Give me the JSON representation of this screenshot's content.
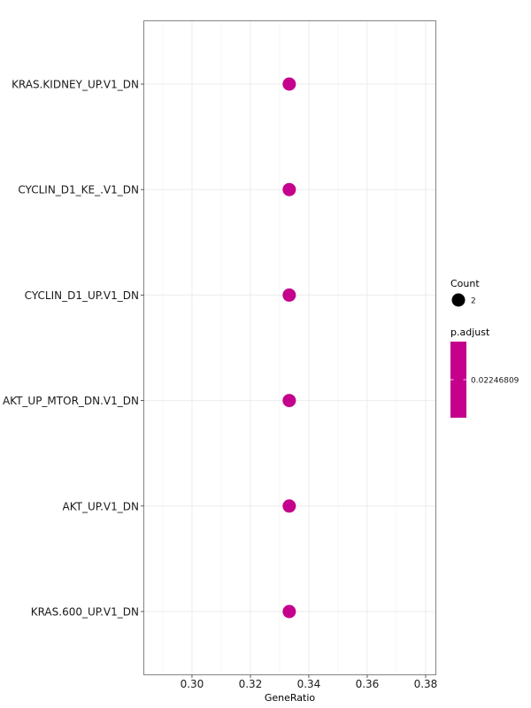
{
  "chart_data": {
    "type": "scatter",
    "title": "",
    "xlabel": "GeneRatio",
    "ylabel": "",
    "xlim": [
      0.2835,
      0.3835
    ],
    "x_ticks": [
      0.3,
      0.32,
      0.34,
      0.36,
      0.38
    ],
    "x_tick_labels": [
      "0.30",
      "0.32",
      "0.34",
      "0.36",
      "0.38"
    ],
    "categories": [
      "KRAS.KIDNEY_UP.V1_DN",
      "CYCLIN_D1_KE_.V1_DN",
      "CYCLIN_D1_UP.V1_DN",
      "AKT_UP_MTOR_DN.V1_DN",
      "AKT_UP.V1_DN",
      "KRAS.600_UP.V1_DN"
    ],
    "points": [
      {
        "category": "KRAS.KIDNEY_UP.V1_DN",
        "x": 0.3333,
        "count": 2,
        "p_adjust": 0.02246809
      },
      {
        "category": "CYCLIN_D1_KE_.V1_DN",
        "x": 0.3333,
        "count": 2,
        "p_adjust": 0.02246809
      },
      {
        "category": "CYCLIN_D1_UP.V1_DN",
        "x": 0.3333,
        "count": 2,
        "p_adjust": 0.02246809
      },
      {
        "category": "AKT_UP_MTOR_DN.V1_DN",
        "x": 0.3333,
        "count": 2,
        "p_adjust": 0.02246809
      },
      {
        "category": "AKT_UP.V1_DN",
        "x": 0.3333,
        "count": 2,
        "p_adjust": 0.02246809
      },
      {
        "category": "KRAS.600_UP.V1_DN",
        "x": 0.3333,
        "count": 2,
        "p_adjust": 0.02246809
      }
    ],
    "point_color": "#C4008C",
    "grid": true,
    "legend": {
      "placement": "right",
      "size": {
        "title": "Count",
        "labels": [
          "2"
        ]
      },
      "color": {
        "title": "p.adjust",
        "labels": [
          "0.02246809"
        ],
        "color": "#C4008C"
      }
    }
  }
}
